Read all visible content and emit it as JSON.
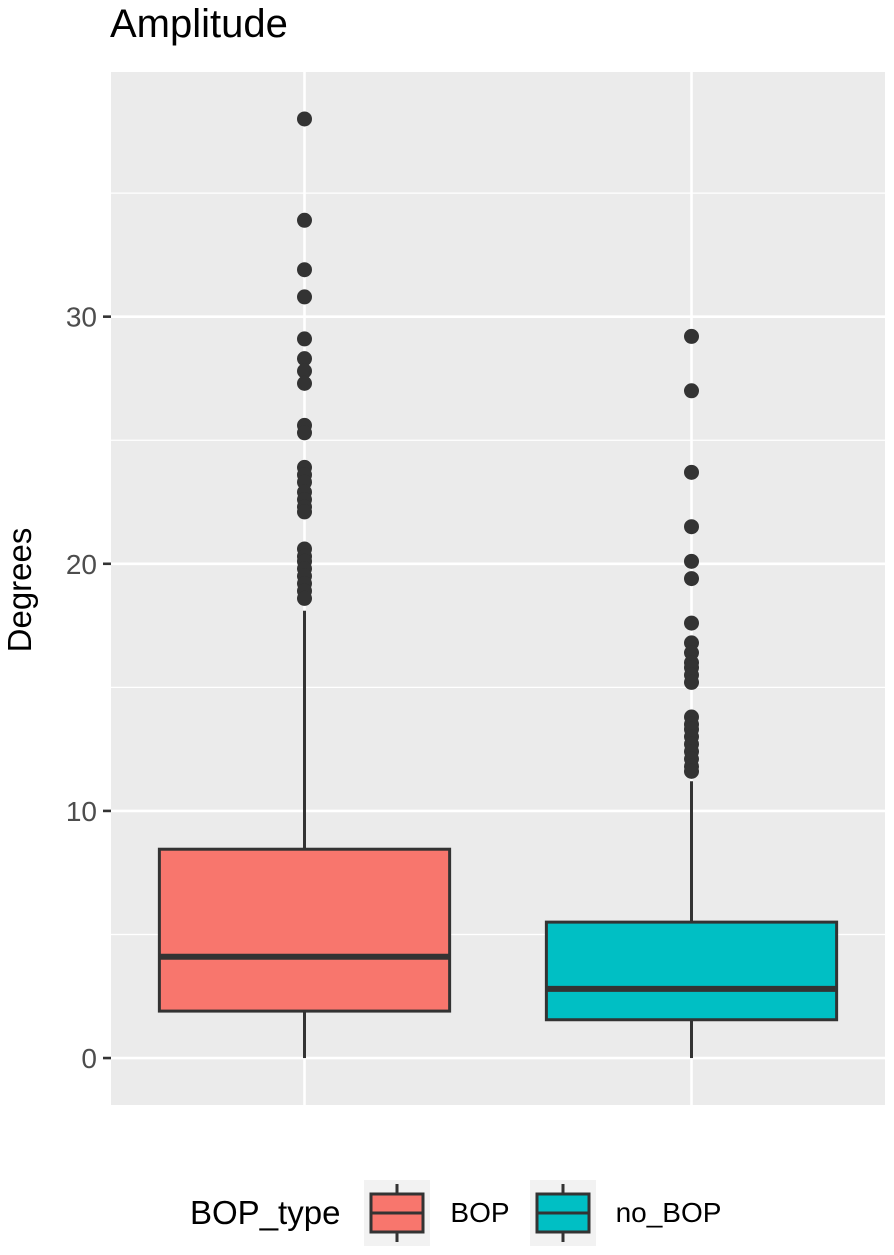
{
  "chart_data": {
    "type": "box",
    "title": "Amplitude",
    "xlabel": "",
    "ylabel": "Degrees",
    "ylim": [
      -1.9,
      39.9
    ],
    "yticks": [
      0,
      10,
      20,
      30
    ],
    "ytick_labels": [
      "0",
      "10",
      "20",
      "30"
    ],
    "grid": true,
    "legend": {
      "title": "BOP_type",
      "position": "bottom",
      "entries": [
        "BOP",
        "no_BOP"
      ]
    },
    "categories": [
      "BOP",
      "no_BOP"
    ],
    "series": [
      {
        "name": "BOP",
        "color": "#F8766D",
        "whisker_low": 0.0,
        "q1": 1.9,
        "median": 4.1,
        "q3": 8.45,
        "whisker_high": 18.1,
        "outliers": [
          38.0,
          33.9,
          31.9,
          30.8,
          29.1,
          28.3,
          27.8,
          27.3,
          25.6,
          25.3,
          23.9,
          23.6,
          23.3,
          22.9,
          22.6,
          22.3,
          22.1,
          20.6,
          20.3,
          20.1,
          19.8,
          19.5,
          19.2,
          18.9,
          18.6
        ]
      },
      {
        "name": "no_BOP",
        "color": "#00BFC4",
        "whisker_low": 0.0,
        "q1": 1.55,
        "median": 2.8,
        "q3": 5.5,
        "whisker_high": 11.2,
        "outliers": [
          29.2,
          27.0,
          23.7,
          21.5,
          20.1,
          19.4,
          17.6,
          16.8,
          16.4,
          16.0,
          15.8,
          15.5,
          15.2,
          13.8,
          13.5,
          13.3,
          13.0,
          12.7,
          12.4,
          12.1,
          11.8,
          11.6
        ]
      }
    ]
  },
  "theme": {
    "panel_bg": "#EBEBEB",
    "grid_color": "#FFFFFF",
    "box_line": "#333333",
    "outlier_color": "#333333",
    "tick_text": "#4D4D4D"
  }
}
